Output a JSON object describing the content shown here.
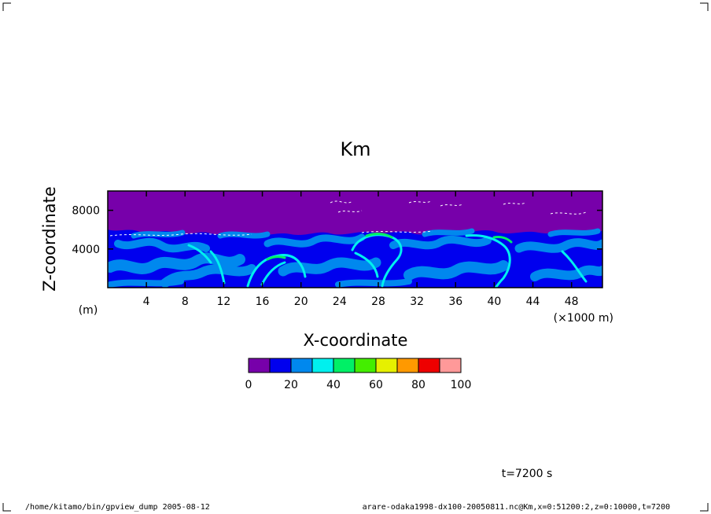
{
  "chart_data": {
    "type": "heatmap",
    "title": "Km",
    "xlabel": "X-coordinate",
    "ylabel": "Z-coordinate",
    "x_unit": "(×1000 m)",
    "y_unit": "(m)",
    "xlim": [
      0,
      51.2
    ],
    "ylim": [
      0,
      10000
    ],
    "x_ticks": [
      "4",
      "8",
      "12",
      "16",
      "20",
      "24",
      "28",
      "32",
      "36",
      "40",
      "44",
      "48"
    ],
    "y_ticks": [
      "4000",
      "8000"
    ],
    "colorbar": {
      "levels": [
        0,
        10,
        20,
        30,
        40,
        50,
        60,
        70,
        80,
        90,
        100
      ],
      "labels": [
        "0",
        "20",
        "40",
        "60",
        "80",
        "100"
      ],
      "colors": [
        "#7700aa",
        "#0000ee",
        "#0088ee",
        "#00f0ee",
        "#00f066",
        "#44ee00",
        "#e6f000",
        "#ff9900",
        "#ee0000",
        "#ff9999"
      ]
    },
    "time_label": "t=7200 s"
  },
  "footer": {
    "left": "/home/kitamo/bin/gpview_dump  2005-08-12",
    "right": "arare-odaka1998-dx100-20050811.nc@Km,x=0:51200:2,z=0:10000,t=7200"
  }
}
